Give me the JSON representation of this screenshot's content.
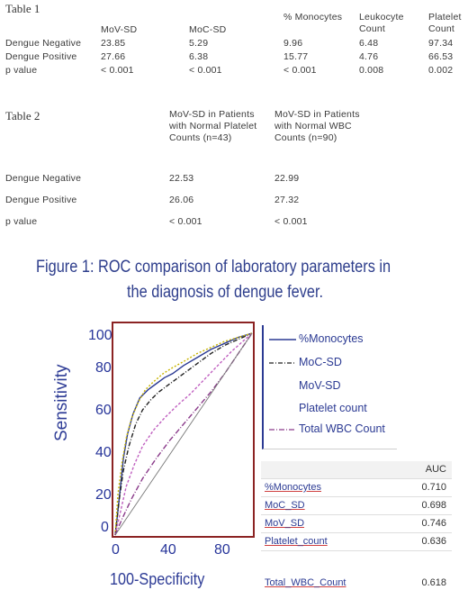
{
  "table1": {
    "title": "Table 1",
    "headers": [
      "MoV-SD",
      "MoC-SD",
      "% Monocytes",
      "Leukocyte Count",
      "Platelet Count"
    ],
    "rows": [
      {
        "label": "Dengue Negative",
        "values": [
          "23.85",
          "5.29",
          "9.96",
          "6.48",
          "97.34"
        ]
      },
      {
        "label": "Dengue Positive",
        "values": [
          "27.66",
          "6.38",
          "15.77",
          "4.76",
          "66.53"
        ]
      },
      {
        "label": "p value",
        "values": [
          "< 0.001",
          "< 0.001",
          "< 0.001",
          "0.008",
          "0.002"
        ]
      }
    ]
  },
  "table2": {
    "title": "Table 2",
    "headers": [
      "MoV-SD in Patients with Normal Platelet Counts (n=43)",
      "MoV-SD  in Patients with Normal WBC Counts (n=90)"
    ],
    "rows": [
      {
        "label": "Dengue Negative",
        "values": [
          "22.53",
          "22.99"
        ]
      },
      {
        "label": "Dengue Positive",
        "values": [
          "26.06",
          "27.32"
        ]
      },
      {
        "label": "p value",
        "values": [
          "< 0.001",
          "< 0.001"
        ]
      }
    ]
  },
  "figure": {
    "title_line1": "Figure 1: ROC comparison of laboratory parameters in",
    "title_line2": "the diagnosis of dengue fever."
  },
  "chart_data": {
    "type": "line",
    "xlabel": "100-Specificity",
    "ylabel": "Sensitivity",
    "xlim": [
      0,
      100
    ],
    "ylim": [
      0,
      100
    ],
    "xticks": [
      "0",
      "40",
      "80"
    ],
    "yticks": [
      "0",
      "20",
      "40",
      "60",
      "80",
      "100"
    ],
    "series": [
      {
        "name": "%Monocytes",
        "color": "#2b3a93",
        "dash": "",
        "x": [
          0,
          2,
          4,
          6,
          9,
          13,
          18,
          24,
          30,
          36,
          42,
          50,
          60,
          70,
          80,
          90,
          100
        ],
        "y": [
          0,
          12,
          25,
          38,
          50,
          60,
          68,
          72,
          75,
          78,
          80,
          84,
          88,
          92,
          95,
          98,
          100
        ]
      },
      {
        "name": "MoC-SD",
        "color": "#222222",
        "dash": "5,2,1,2",
        "x": [
          0,
          3,
          6,
          10,
          15,
          20,
          26,
          32,
          40,
          50,
          60,
          70,
          80,
          90,
          100
        ],
        "y": [
          0,
          18,
          32,
          44,
          55,
          62,
          67,
          71,
          75,
          80,
          85,
          90,
          94,
          97,
          100
        ]
      },
      {
        "name": "MoV-SD",
        "color": "#c8b400",
        "dash": "2,2",
        "x": [
          0,
          2,
          5,
          8,
          12,
          17,
          22,
          28,
          35,
          42,
          50,
          60,
          70,
          80,
          90,
          100
        ],
        "y": [
          0,
          20,
          36,
          48,
          58,
          66,
          72,
          76,
          80,
          83,
          86,
          90,
          93,
          96,
          98,
          100
        ]
      },
      {
        "name": "Platelet count",
        "color": "#c060c0",
        "dash": "3,2",
        "x": [
          0,
          4,
          8,
          14,
          20,
          28,
          36,
          45,
          55,
          65,
          75,
          85,
          95,
          100
        ],
        "y": [
          0,
          12,
          24,
          35,
          44,
          52,
          58,
          64,
          70,
          77,
          84,
          91,
          97,
          100
        ]
      },
      {
        "name": "Total WBC Count",
        "color": "#8a3a8a",
        "dash": "6,2,1,2",
        "x": [
          0,
          5,
          12,
          20,
          30,
          40,
          50,
          60,
          70,
          80,
          90,
          100
        ],
        "y": [
          0,
          8,
          18,
          28,
          38,
          47,
          55,
          63,
          71,
          80,
          90,
          100
        ]
      },
      {
        "name": "",
        "color": "#777777",
        "dash": "",
        "x": [
          0,
          100
        ],
        "y": [
          0,
          100
        ]
      }
    ],
    "auc_table": {
      "header": "AUC",
      "rows": [
        {
          "name": "%Monocytes",
          "auc": "0.710"
        },
        {
          "name": "MoC_SD",
          "auc": "0.698"
        },
        {
          "name": "MoV_SD",
          "auc": "0.746"
        },
        {
          "name": "Platelet_count",
          "auc": "0.636"
        },
        {
          "name": "Total_WBC_Count",
          "auc": "0.618"
        }
      ]
    }
  }
}
